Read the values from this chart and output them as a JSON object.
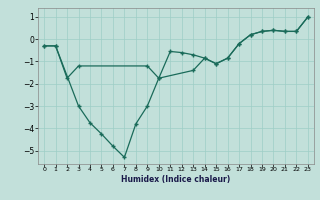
{
  "xlabel": "Humidex (Indice chaleur)",
  "background_color": "#c2e0da",
  "grid_color": "#9ecec6",
  "line_color": "#1a6b5a",
  "xlim": [
    -0.5,
    23.5
  ],
  "ylim": [
    -5.6,
    1.4
  ],
  "yticks": [
    1,
    0,
    -1,
    -2,
    -3,
    -4,
    -5
  ],
  "xticks": [
    0,
    1,
    2,
    3,
    4,
    5,
    6,
    7,
    8,
    9,
    10,
    11,
    12,
    13,
    14,
    15,
    16,
    17,
    18,
    19,
    20,
    21,
    22,
    23
  ],
  "line1_x": [
    0,
    1,
    3,
    4,
    5,
    6,
    7,
    8,
    9,
    10,
    11,
    12,
    13,
    14,
    15,
    16,
    17,
    18,
    19,
    20,
    21,
    22,
    23
  ],
  "line1_y": [
    -0.3,
    -0.3,
    -3.0,
    -3.75,
    -4.25,
    -4.8,
    -5.3,
    -3.8,
    -3.0,
    -1.75,
    -0.55,
    -0.6,
    -0.7,
    -0.85,
    -1.1,
    -0.85,
    -0.2,
    0.2,
    0.35,
    0.4,
    0.35,
    0.35,
    1.0
  ],
  "line2_x": [
    0,
    1,
    2,
    3,
    9,
    10,
    13,
    14,
    15,
    16,
    17,
    18,
    19,
    20,
    21,
    22,
    23
  ],
  "line2_y": [
    -0.3,
    -0.3,
    -1.75,
    -1.2,
    -1.2,
    -1.75,
    -1.4,
    -0.85,
    -1.1,
    -0.85,
    -0.2,
    0.2,
    0.35,
    0.4,
    0.35,
    0.35,
    1.0
  ]
}
